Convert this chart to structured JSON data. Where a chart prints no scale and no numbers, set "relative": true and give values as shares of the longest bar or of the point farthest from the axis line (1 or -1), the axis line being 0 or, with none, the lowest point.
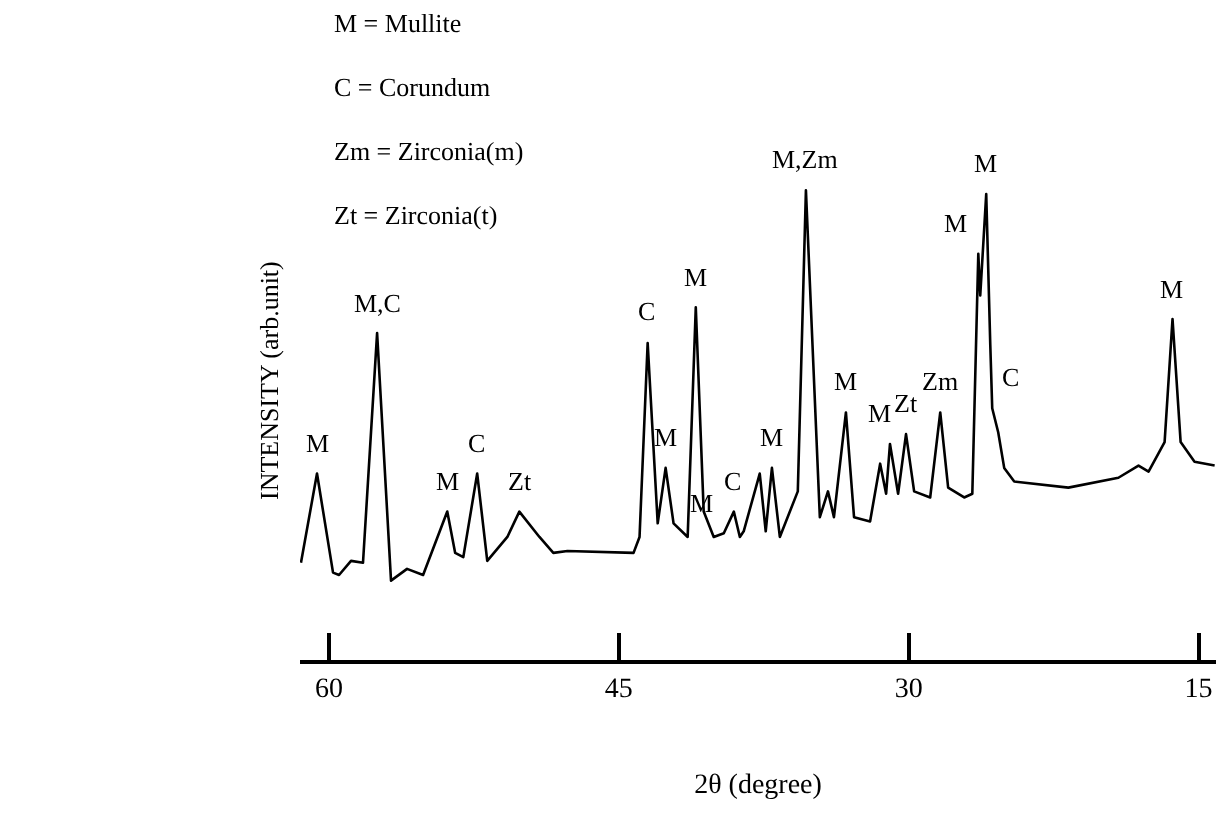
{
  "chart_data": {
    "type": "line",
    "relative": true,
    "xlabel": "2θ (degree)",
    "ylabel": "INTENSITY (arb.unit)",
    "xlim": [
      61.5,
      14.1
    ],
    "xticks": [
      60,
      45,
      30,
      15
    ],
    "tick_labels": "x",
    "x": [
      61.45,
      60.62,
      59.79,
      59.48,
      58.86,
      58.24,
      57.51,
      56.79,
      55.96,
      55.13,
      53.88,
      53.47,
      53.05,
      52.33,
      51.81,
      50.77,
      50.15,
      49.11,
      48.39,
      47.66,
      44.24,
      43.93,
      43.51,
      42.99,
      42.58,
      42.17,
      41.44,
      41.02,
      40.61,
      40.09,
      39.57,
      39.05,
      38.74,
      38.54,
      37.71,
      37.4,
      37.08,
      36.67,
      35.74,
      35.32,
      34.6,
      34.18,
      33.87,
      33.25,
      32.83,
      32.0,
      31.48,
      31.17,
      30.97,
      30.55,
      30.14,
      29.72,
      28.89,
      28.37,
      27.96,
      27.13,
      26.71,
      26.4,
      26.3,
      25.99,
      25.78,
      25.68,
      25.37,
      25.06,
      24.54,
      21.74,
      19.15,
      18.11,
      17.59,
      16.76,
      16.35,
      15.93,
      15.21,
      14.17
    ],
    "series": [
      {
        "color": "#000000",
        "values": [
          0.207,
          0.397,
          0.186,
          0.181,
          0.211,
          0.207,
          0.696,
          0.169,
          0.194,
          0.181,
          0.316,
          0.228,
          0.219,
          0.397,
          0.211,
          0.262,
          0.316,
          0.262,
          0.228,
          0.232,
          0.228,
          0.262,
          0.675,
          0.291,
          0.409,
          0.291,
          0.262,
          0.751,
          0.316,
          0.262,
          0.27,
          0.316,
          0.262,
          0.274,
          0.397,
          0.274,
          0.409,
          0.262,
          0.359,
          1,
          0.304,
          0.359,
          0.304,
          0.527,
          0.304,
          0.295,
          0.418,
          0.354,
          0.46,
          0.354,
          0.481,
          0.359,
          0.346,
          0.527,
          0.367,
          0.346,
          0.354,
          0.865,
          0.776,
          0.992,
          0.671,
          0.536,
          0.485,
          0.409,
          0.38,
          0.367,
          0.388,
          0.414,
          0.401,
          0.464,
          0.726,
          0.464,
          0.422,
          0.414
        ]
      }
    ],
    "annotations": [
      "M = Mullite",
      "C = Corundum",
      "Zm = Zirconia(m)",
      "Zt = Zirconia(t)",
      {
        "text": "M",
        "x": 60.62,
        "y": 0.397
      },
      {
        "text": "M,C",
        "x": 57.51,
        "y": 0.696
      },
      {
        "text": "M",
        "x": 53.88,
        "y": 0.316
      },
      {
        "text": "C",
        "x": 52.33,
        "y": 0.397
      },
      {
        "text": "Zt",
        "x": 50.15,
        "y": 0.316
      },
      {
        "text": "C",
        "x": 43.51,
        "y": 0.675
      },
      {
        "text": "M",
        "x": 42.58,
        "y": 0.409
      },
      {
        "text": "M",
        "x": 41.02,
        "y": 0.751
      },
      {
        "text": "M",
        "x": 39.57,
        "y": 0.27
      },
      {
        "text": "C",
        "x": 39.05,
        "y": 0.316
      },
      {
        "text": "M",
        "x": 37.08,
        "y": 0.409
      },
      {
        "text": "M,Zm",
        "x": 35.32,
        "y": 1
      },
      {
        "text": "M",
        "x": 33.25,
        "y": 0.527
      },
      {
        "text": "M",
        "x": 31.48,
        "y": 0.418
      },
      {
        "text": "Zt",
        "x": 30.14,
        "y": 0.481
      },
      {
        "text": "Zm",
        "x": 28.37,
        "y": 0.527
      },
      {
        "text": "M",
        "x": 26.4,
        "y": 0.865
      },
      {
        "text": "M",
        "x": 25.99,
        "y": 0.992
      },
      {
        "text": "C",
        "x": 25.68,
        "y": 0.536
      },
      {
        "text": "M",
        "x": 16.35,
        "y": 0.726
      }
    ]
  }
}
